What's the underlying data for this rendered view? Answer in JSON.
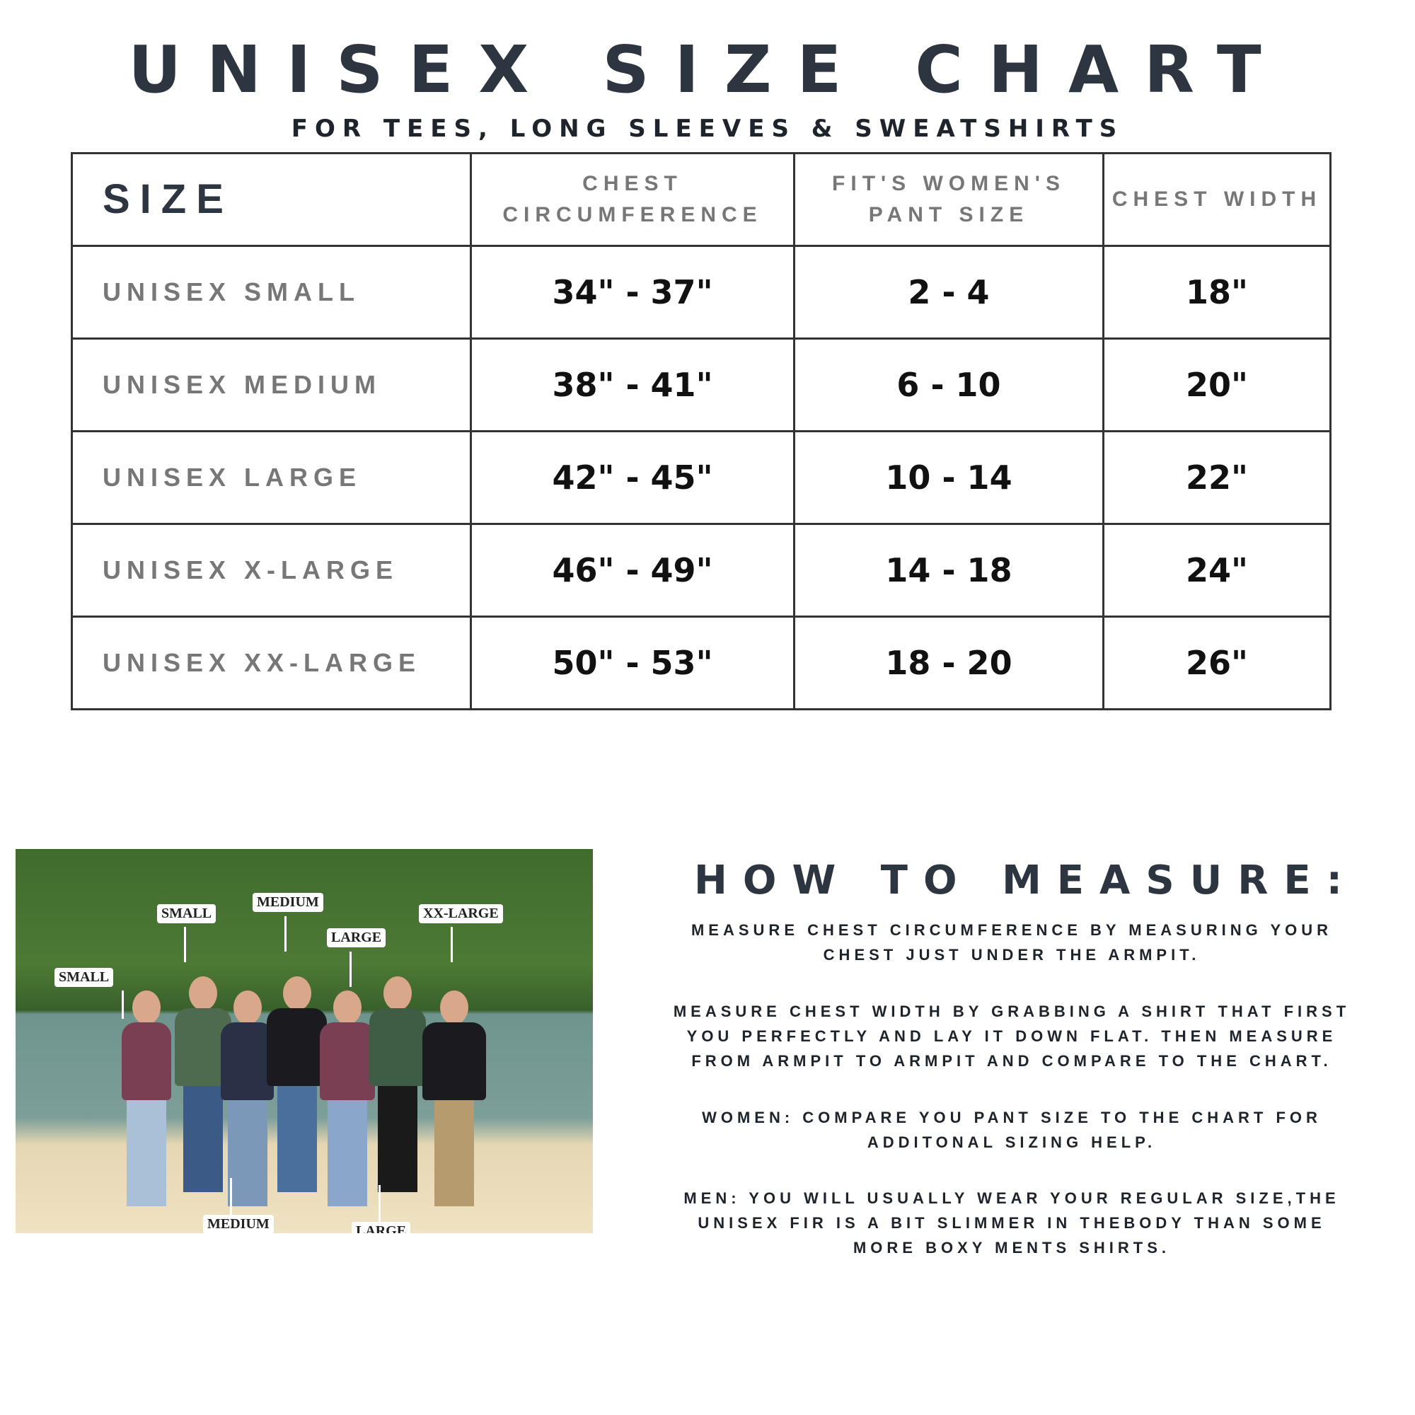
{
  "title": "UNISEX SIZE CHART",
  "subtitle": "FOR TEES, LONG SLEEVES & SWEATSHIRTS",
  "table": {
    "headers": [
      "SIZE",
      "CHEST CIRCUMFERENCE",
      "FIT'S WOMEN'S PANT SIZE",
      "CHEST WIDTH"
    ],
    "rows": [
      [
        "UNISEX SMALL",
        "34\" - 37\"",
        "2 - 4",
        "18\""
      ],
      [
        "UNISEX MEDIUM",
        "38\" - 41\"",
        "6 - 10",
        "20\""
      ],
      [
        "UNISEX LARGE",
        "42\" - 45\"",
        "10 - 14",
        "22\""
      ],
      [
        "UNISEX X-LARGE",
        "46\" - 49\"",
        "14 - 18",
        "24\""
      ],
      [
        "UNISEX XX-LARGE",
        "50\" - 53\"",
        "18 - 20",
        "26\""
      ]
    ]
  },
  "photo": {
    "labels": [
      "SMALL",
      "SMALL",
      "MEDIUM",
      "LARGE",
      "XX-LARGE",
      "MEDIUM",
      "LARGE"
    ],
    "shirt_colors": [
      "#7a3f52",
      "#4f6b4f",
      "#2a3045",
      "#1b1b1f",
      "#7a3f52",
      "#3f5c44",
      "#1b1b1f"
    ]
  },
  "how_to": {
    "heading": "HOW TO MEASURE:",
    "paragraphs": [
      [
        "MEASURE CHEST CIRCUMFERENCE BY MEASURING YOUR",
        "CHEST JUST UNDER THE ARMPIT."
      ],
      [
        "MEASURE CHEST WIDTH BY GRABBING A SHIRT THAT FIRST",
        "YOU PERFECTLY AND LAY IT DOWN FLAT. THEN MEASURE",
        "FROM ARMPIT TO ARMPIT AND COMPARE TO THE CHART."
      ],
      [
        "WOMEN: COMPARE YOU PANT SIZE TO THE CHART FOR",
        "ADDITONAL SIZING HELP."
      ],
      [
        "MEN: YOU WILL USUALLY WEAR YOUR REGULAR SIZE,THE",
        "UNISEX FIR IS A BIT SLIMMER IN THEBODY THAN SOME",
        "MORE BOXY MENTS SHIRTS."
      ]
    ]
  }
}
